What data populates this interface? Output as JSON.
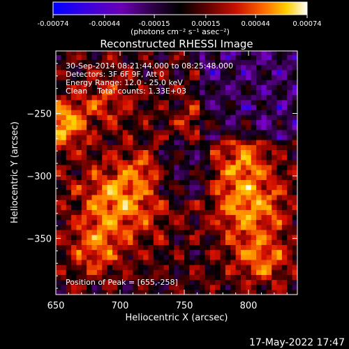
{
  "chart_data": {
    "type": "heatmap",
    "title": "Reconstructed RHESSI Image",
    "xlabel": "Heliocentric X (arcsec)",
    "ylabel": "Heliocentric Y (arcsec)",
    "xlim": [
      650,
      838
    ],
    "ylim": [
      -395,
      -200
    ],
    "x_ticks": [
      650,
      700,
      750,
      800
    ],
    "y_ticks": [
      -250,
      -300,
      -350
    ],
    "colorbar": {
      "range": [
        -0.00074,
        0.00074
      ],
      "ticks": [
        "-0.00074",
        "-0.00044",
        "-0.00015",
        "0.00015",
        "0.00044",
        "0.00074"
      ],
      "unit_label": "(photons cm⁻² s⁻¹ asec⁻²)",
      "colors": [
        "#0000ff",
        "#7a00c8",
        "#3c005a",
        "#000000",
        "#6b0000",
        "#d81000",
        "#ff7a00",
        "#ffd000",
        "#ffffff"
      ]
    },
    "annotations": {
      "time_range": "30-Sep-2014 08:21:44.000 to 08:25:48.000",
      "detectors": "Detectors: 3F 6F 9F, Att 0",
      "energy": "Energy Range: 12.0 - 25.0 keV",
      "clean": "Clean    Total counts: 1.33E+03",
      "peak": "Position of Peak = [655,-258]"
    },
    "peak": [
      655,
      -258
    ],
    "grid_resolution": 4,
    "footer_date": "17-May-2022 17:47"
  }
}
